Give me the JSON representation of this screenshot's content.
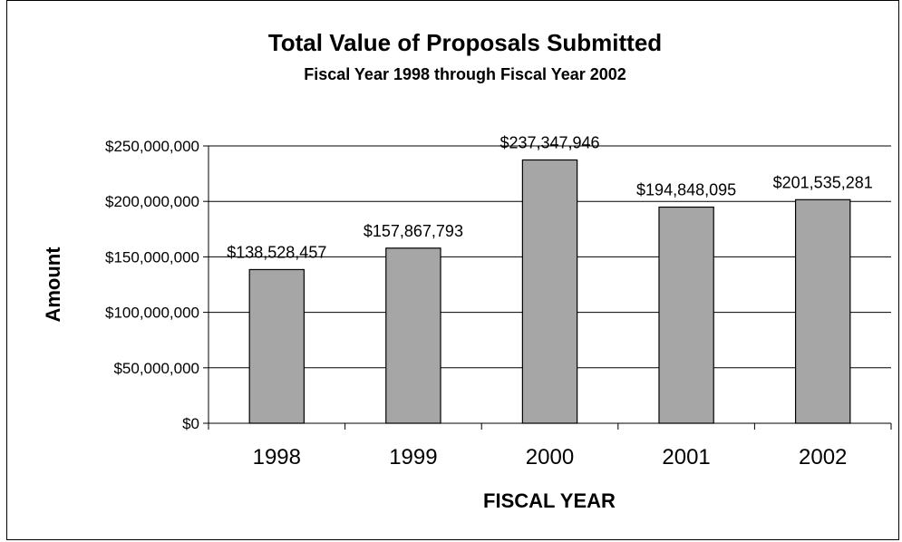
{
  "chart_data": {
    "type": "bar",
    "title": "Total Value of Proposals Submitted",
    "subtitle": "Fiscal Year 1998 through Fiscal Year 2002",
    "xlabel": "FISCAL YEAR",
    "ylabel": "Amount",
    "categories": [
      "1998",
      "1999",
      "2000",
      "2001",
      "2002"
    ],
    "values": [
      138528457,
      157867793,
      237347946,
      194848095,
      201535281
    ],
    "data_labels": [
      "$138,528,457",
      "$157,867,793",
      "$237,347,946",
      "$194,848,095",
      "$201,535,281"
    ],
    "ylim": [
      0,
      250000000
    ],
    "yticks": [
      0,
      50000000,
      100000000,
      150000000,
      200000000,
      250000000
    ],
    "ytick_labels": [
      "$0",
      "$50,000,000",
      "$100,000,000",
      "$150,000,000",
      "$200,000,000",
      "$250,000,000"
    ],
    "grid": true,
    "legend": "none",
    "bar_color": "#a6a6a6"
  }
}
